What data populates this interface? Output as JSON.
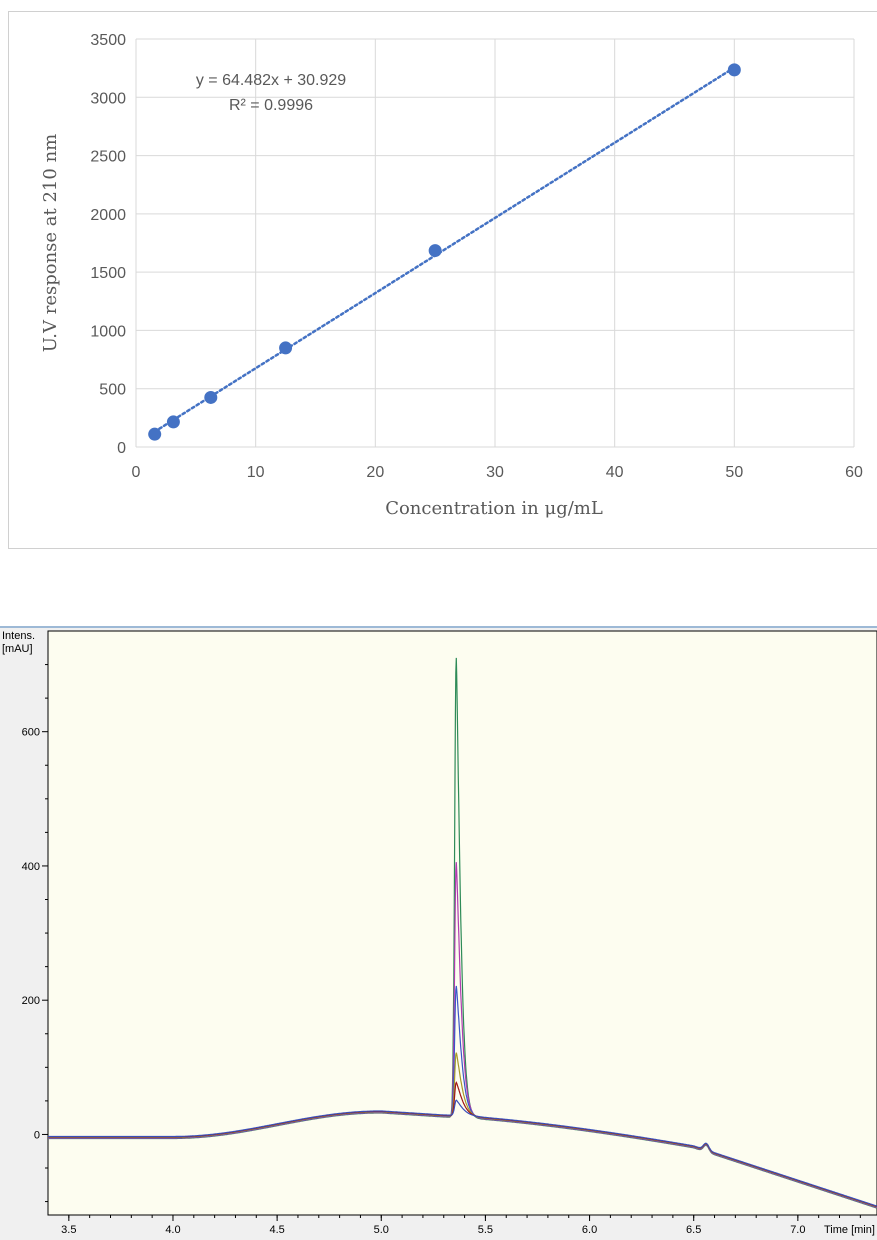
{
  "chart_data": [
    {
      "type": "scatter",
      "xlabel": "Concentration in μg/mL",
      "ylabel": "U.V response at 210 nm",
      "xlim": [
        0,
        60
      ],
      "ylim": [
        0,
        3500
      ],
      "x_ticks": [
        "0",
        "10",
        "20",
        "30",
        "40",
        "50",
        "60"
      ],
      "y_ticks": [
        "0",
        "500",
        "1000",
        "1500",
        "2000",
        "2500",
        "3000",
        "3500"
      ],
      "grid": true,
      "points": [
        {
          "x": 1.5625,
          "y": 110
        },
        {
          "x": 3.125,
          "y": 215
        },
        {
          "x": 6.25,
          "y": 425
        },
        {
          "x": 12.5,
          "y": 850
        },
        {
          "x": 25,
          "y": 1685
        },
        {
          "x": 50,
          "y": 3235
        }
      ],
      "trendline": {
        "slope": 64.482,
        "intercept": 30.929,
        "style": "dotted"
      },
      "equation": "y = 64.482x + 30.929",
      "r_squared": "R² = 0.9996",
      "colors": {
        "points": "#4472c4",
        "grid": "#d9d9d9"
      }
    },
    {
      "type": "line",
      "ylabel": "Intens.",
      "yunit": "[mAU]",
      "xlabel": "Time [min]",
      "xlim": [
        3.4,
        7.38
      ],
      "ylim": [
        -120,
        750
      ],
      "x_ticks": [
        "3.5",
        "4.0",
        "4.5",
        "5.0",
        "5.5",
        "6.0",
        "6.5",
        "7.0"
      ],
      "y_ticks": [
        "0",
        "200",
        "400",
        "600"
      ],
      "background": "#fdfdf0",
      "peak_time": 5.36,
      "series": [
        {
          "color": "#2e8b57",
          "peak": 710
        },
        {
          "color": "#b03cb0",
          "peak": 405
        },
        {
          "color": "#3a56c8",
          "peak": 220
        },
        {
          "color": "#a89b2a",
          "peak": 120
        },
        {
          "color": "#a01414",
          "peak": 75
        },
        {
          "color": "#3a4fb8",
          "peak": 48
        }
      ]
    }
  ]
}
